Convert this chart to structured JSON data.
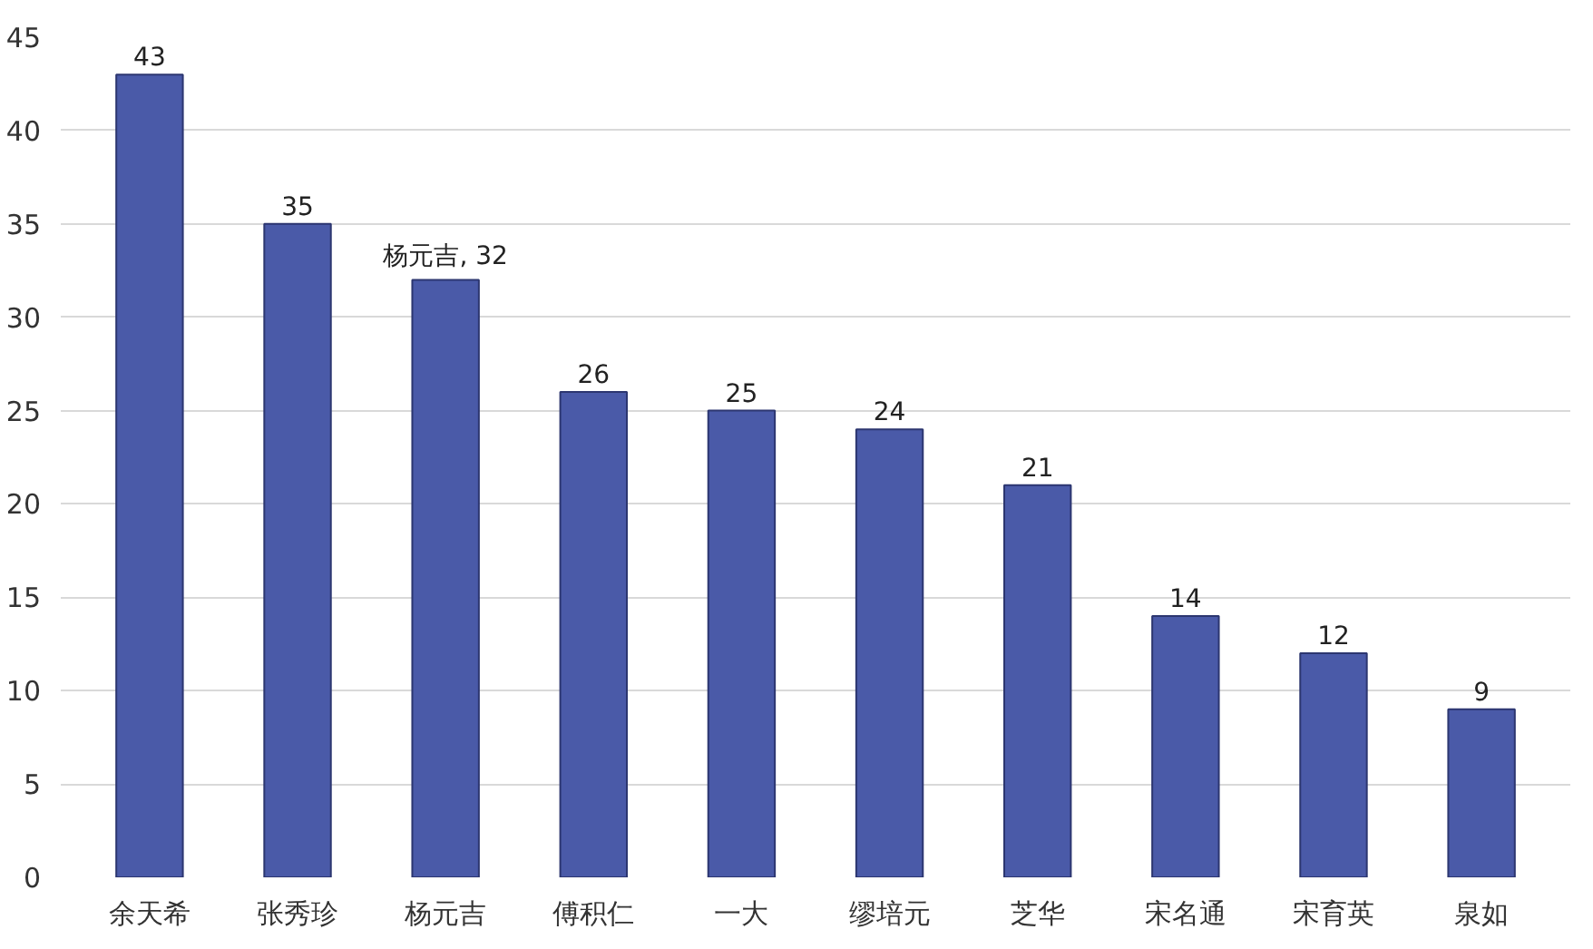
{
  "chart_data": {
    "type": "bar",
    "categories": [
      "余天希",
      "张秀珍",
      "杨元吉",
      "傅积仁",
      "一大",
      "缪培元",
      "芝华",
      "宋名通",
      "宋育英",
      "泉如"
    ],
    "values": [
      43,
      35,
      32,
      26,
      25,
      24,
      21,
      14,
      12,
      9
    ],
    "value_labels": [
      "43",
      "35",
      "杨元吉, 32",
      "26",
      "25",
      "24",
      "21",
      "14",
      "12",
      "9"
    ],
    "color": "#4a5aa8",
    "ylim": [
      0,
      45
    ],
    "yticks": [
      0,
      5,
      10,
      15,
      20,
      25,
      30,
      35,
      40,
      45
    ],
    "grid": "y"
  }
}
